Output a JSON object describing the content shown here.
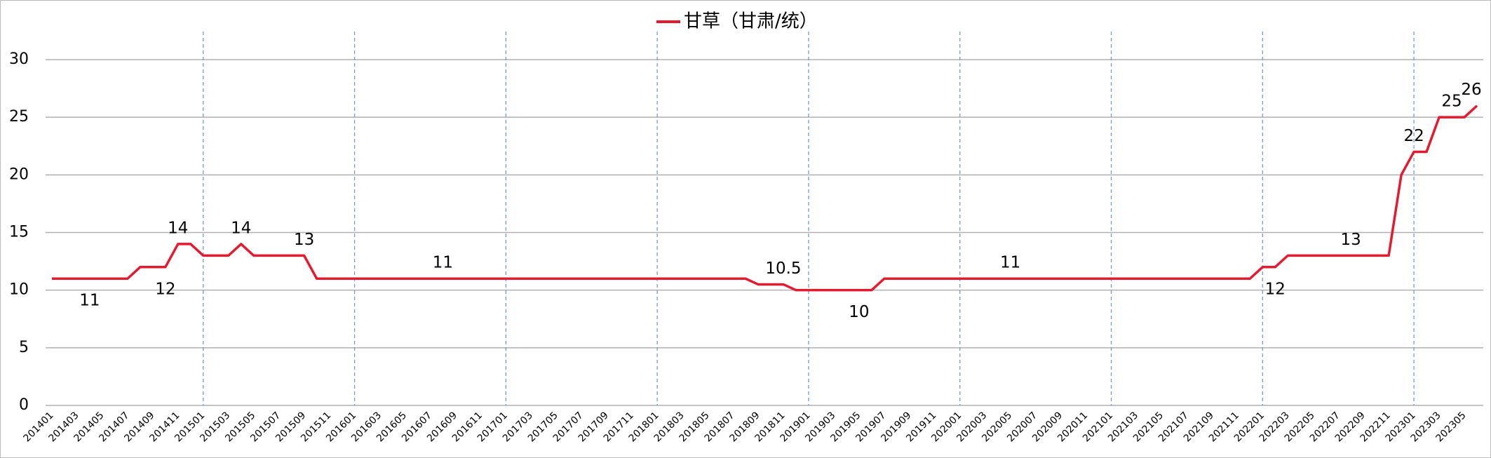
{
  "chart_data": {
    "type": "line",
    "categories": [
      "201401",
      null,
      "201403",
      null,
      "201405",
      null,
      "201407",
      null,
      "201409",
      null,
      "201411",
      null,
      "201501",
      null,
      "201503",
      null,
      "201505",
      null,
      "201507",
      null,
      "201509",
      null,
      "201511",
      null,
      "201601",
      null,
      "201603",
      null,
      "201605",
      null,
      "201607",
      null,
      "201609",
      null,
      "201611",
      null,
      "201701",
      null,
      "201703",
      null,
      "201705",
      null,
      "201707",
      null,
      "201709",
      null,
      "201711",
      null,
      "201801",
      null,
      "201803",
      null,
      "201805",
      null,
      "201807",
      null,
      "201809",
      null,
      "201811",
      null,
      "201901",
      null,
      "201903",
      null,
      "201905",
      null,
      "201907",
      null,
      "201909",
      null,
      "201911",
      null,
      "202001",
      null,
      "202003",
      null,
      "202005",
      null,
      "202007",
      null,
      "202009",
      null,
      "202011",
      null,
      "202101",
      null,
      "202103",
      null,
      "202105",
      null,
      "202107",
      null,
      "202109",
      null,
      "202111",
      null,
      "202201",
      null,
      "202203",
      null,
      "202205",
      null,
      "202207",
      null,
      "202209",
      null,
      "202211",
      null,
      "202301",
      null,
      "202303",
      null,
      "202305",
      null
    ],
    "series": [
      {
        "name": "甘草（甘肃/统）",
        "color": "#e41a2e",
        "values": [
          11,
          11,
          11,
          11,
          11,
          11,
          11,
          12,
          12,
          12,
          14,
          14,
          13,
          13,
          13,
          14,
          13,
          13,
          13,
          13,
          13,
          11,
          11,
          11,
          11,
          11,
          11,
          11,
          11,
          11,
          11,
          11,
          11,
          11,
          11,
          11,
          11,
          11,
          11,
          11,
          11,
          11,
          11,
          11,
          11,
          11,
          11,
          11,
          11,
          11,
          11,
          11,
          11,
          11,
          11,
          11,
          10.5,
          10.5,
          10.5,
          10,
          10,
          10,
          10,
          10,
          10,
          10,
          11,
          11,
          11,
          11,
          11,
          11,
          11,
          11,
          11,
          11,
          11,
          11,
          11,
          11,
          11,
          11,
          11,
          11,
          11,
          11,
          11,
          11,
          11,
          11,
          11,
          11,
          11,
          11,
          11,
          11,
          12,
          12,
          13,
          13,
          13,
          13,
          13,
          13,
          13,
          13,
          13,
          20,
          22,
          22,
          25,
          25,
          25,
          26
        ],
        "value_labels": [
          null,
          null,
          null,
          "11",
          null,
          null,
          null,
          null,
          null,
          "12",
          "14",
          null,
          null,
          null,
          null,
          "14",
          null,
          null,
          null,
          null,
          "13",
          null,
          null,
          null,
          null,
          null,
          null,
          null,
          null,
          null,
          null,
          "11",
          null,
          null,
          null,
          null,
          null,
          null,
          null,
          null,
          null,
          null,
          null,
          null,
          null,
          null,
          null,
          null,
          null,
          null,
          null,
          null,
          null,
          null,
          null,
          null,
          null,
          null,
          "10.5",
          null,
          null,
          null,
          null,
          null,
          "10",
          null,
          null,
          null,
          null,
          null,
          null,
          null,
          null,
          null,
          null,
          null,
          "11",
          null,
          null,
          null,
          null,
          null,
          null,
          null,
          null,
          null,
          null,
          null,
          null,
          null,
          null,
          null,
          null,
          null,
          null,
          null,
          null,
          "12",
          null,
          null,
          null,
          null,
          null,
          "13",
          null,
          null,
          null,
          null,
          "22",
          null,
          null,
          "25",
          null,
          "26"
        ]
      }
    ],
    "ylim": [
      0,
      30
    ],
    "yticks": [
      0,
      5,
      10,
      15,
      20,
      25,
      30
    ],
    "grid": true
  }
}
